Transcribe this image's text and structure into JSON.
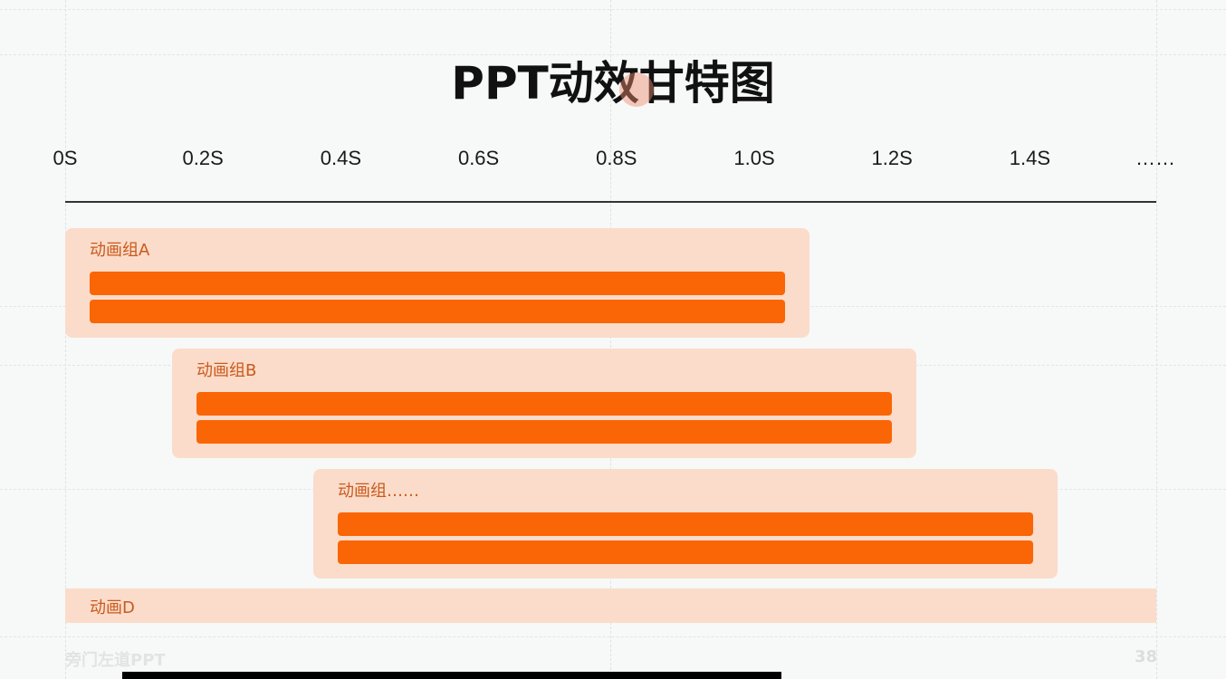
{
  "slide": {
    "title": "PPT动效甘特图",
    "time_axis": {
      "ticks": [
        "0S",
        "0.2S",
        "0.4S",
        "0.6S",
        "0.8S",
        "1.0S",
        "1.2S",
        "1.4S",
        "……"
      ]
    },
    "groups": [
      {
        "label": "动画组A",
        "start_s": 0.0,
        "end_s": 1.08,
        "bar_count": 2
      },
      {
        "label": "动画组B",
        "start_s": 0.155,
        "end_s": 1.235,
        "bar_count": 2
      },
      {
        "label": "动画组……",
        "start_s": 0.36,
        "end_s": 1.44,
        "bar_count": 2
      }
    ],
    "row_d": {
      "label": "动画D"
    },
    "footer": {
      "brand": "旁门左道PPT",
      "page_number": "38"
    },
    "colors": {
      "bar": "#fa6505",
      "group_bg": "#fbdcca",
      "label": "#c95a1c",
      "axis": "#333333"
    }
  }
}
